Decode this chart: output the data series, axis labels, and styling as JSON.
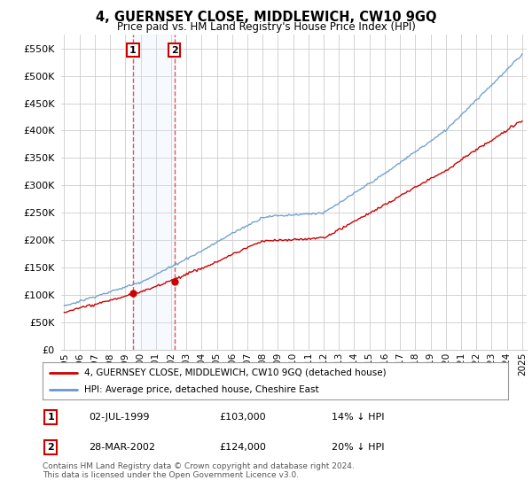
{
  "title": "4, GUERNSEY CLOSE, MIDDLEWICH, CW10 9GQ",
  "subtitle": "Price paid vs. HM Land Registry's House Price Index (HPI)",
  "legend_line1": "4, GUERNSEY CLOSE, MIDDLEWICH, CW10 9GQ (detached house)",
  "legend_line2": "HPI: Average price, detached house, Cheshire East",
  "annotation1_date": "02-JUL-1999",
  "annotation1_price": "£103,000",
  "annotation1_hpi": "14% ↓ HPI",
  "annotation2_date": "28-MAR-2002",
  "annotation2_price": "£124,000",
  "annotation2_hpi": "20% ↓ HPI",
  "footer": "Contains HM Land Registry data © Crown copyright and database right 2024.\nThis data is licensed under the Open Government Licence v3.0.",
  "red_color": "#cc0000",
  "blue_color": "#6699cc",
  "blue_span_color": "#ddeeff",
  "vline_color": "#dd4444",
  "annotation_box_color": "#cc0000",
  "background_color": "#ffffff",
  "grid_color": "#cccccc",
  "ylim": [
    0,
    575000
  ],
  "yticks": [
    0,
    50000,
    100000,
    150000,
    200000,
    250000,
    300000,
    350000,
    400000,
    450000,
    500000,
    550000
  ],
  "sale1_x": 1999.5,
  "sale1_y": 103000,
  "sale2_x": 2002.22,
  "sale2_y": 124000,
  "vline1_x": 1999.5,
  "vline2_x": 2002.22,
  "xmin": 1994.8,
  "xmax": 2025.3
}
